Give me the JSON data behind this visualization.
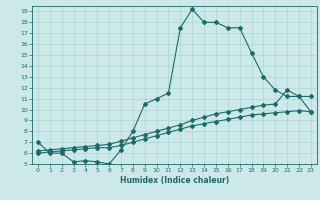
{
  "xlabel": "Humidex (Indice chaleur)",
  "bg_color": "#cce8e8",
  "grid_color": "#aad4d4",
  "line_color": "#1a6b6b",
  "xlim": [
    -0.5,
    23.5
  ],
  "ylim": [
    5,
    19.5
  ],
  "yticks": [
    5,
    6,
    7,
    8,
    9,
    10,
    11,
    12,
    13,
    14,
    15,
    16,
    17,
    18,
    19
  ],
  "xticks": [
    0,
    1,
    2,
    3,
    4,
    5,
    6,
    7,
    8,
    9,
    10,
    11,
    12,
    13,
    14,
    15,
    16,
    17,
    18,
    19,
    20,
    21,
    22,
    23
  ],
  "line1_x": [
    0,
    1,
    2,
    3,
    4,
    5,
    6,
    7,
    8,
    9,
    10,
    11,
    12,
    13,
    14,
    15,
    16,
    17,
    18,
    19,
    20,
    21,
    22,
    23
  ],
  "line1_y": [
    7.0,
    6.0,
    6.0,
    5.2,
    5.3,
    5.2,
    5.0,
    6.3,
    8.0,
    10.5,
    11.0,
    11.5,
    17.5,
    19.2,
    18.0,
    18.0,
    17.5,
    17.5,
    15.2,
    13.0,
    11.8,
    11.2,
    11.2,
    9.8
  ],
  "line2_x": [
    0,
    1,
    2,
    3,
    4,
    5,
    6,
    7,
    8,
    9,
    10,
    11,
    12,
    13,
    14,
    15,
    16,
    17,
    18,
    19,
    20,
    21,
    22,
    23
  ],
  "line2_y": [
    6.2,
    6.3,
    6.4,
    6.5,
    6.6,
    6.7,
    6.8,
    7.1,
    7.4,
    7.7,
    8.0,
    8.3,
    8.6,
    9.0,
    9.3,
    9.6,
    9.8,
    10.0,
    10.2,
    10.4,
    10.5,
    11.8,
    11.2,
    11.2
  ],
  "line3_x": [
    0,
    1,
    2,
    3,
    4,
    5,
    6,
    7,
    8,
    9,
    10,
    11,
    12,
    13,
    14,
    15,
    16,
    17,
    18,
    19,
    20,
    21,
    22,
    23
  ],
  "line3_y": [
    6.0,
    6.1,
    6.2,
    6.3,
    6.4,
    6.5,
    6.5,
    6.7,
    7.0,
    7.3,
    7.6,
    7.9,
    8.2,
    8.5,
    8.7,
    8.9,
    9.1,
    9.3,
    9.5,
    9.6,
    9.7,
    9.8,
    9.9,
    9.8
  ]
}
